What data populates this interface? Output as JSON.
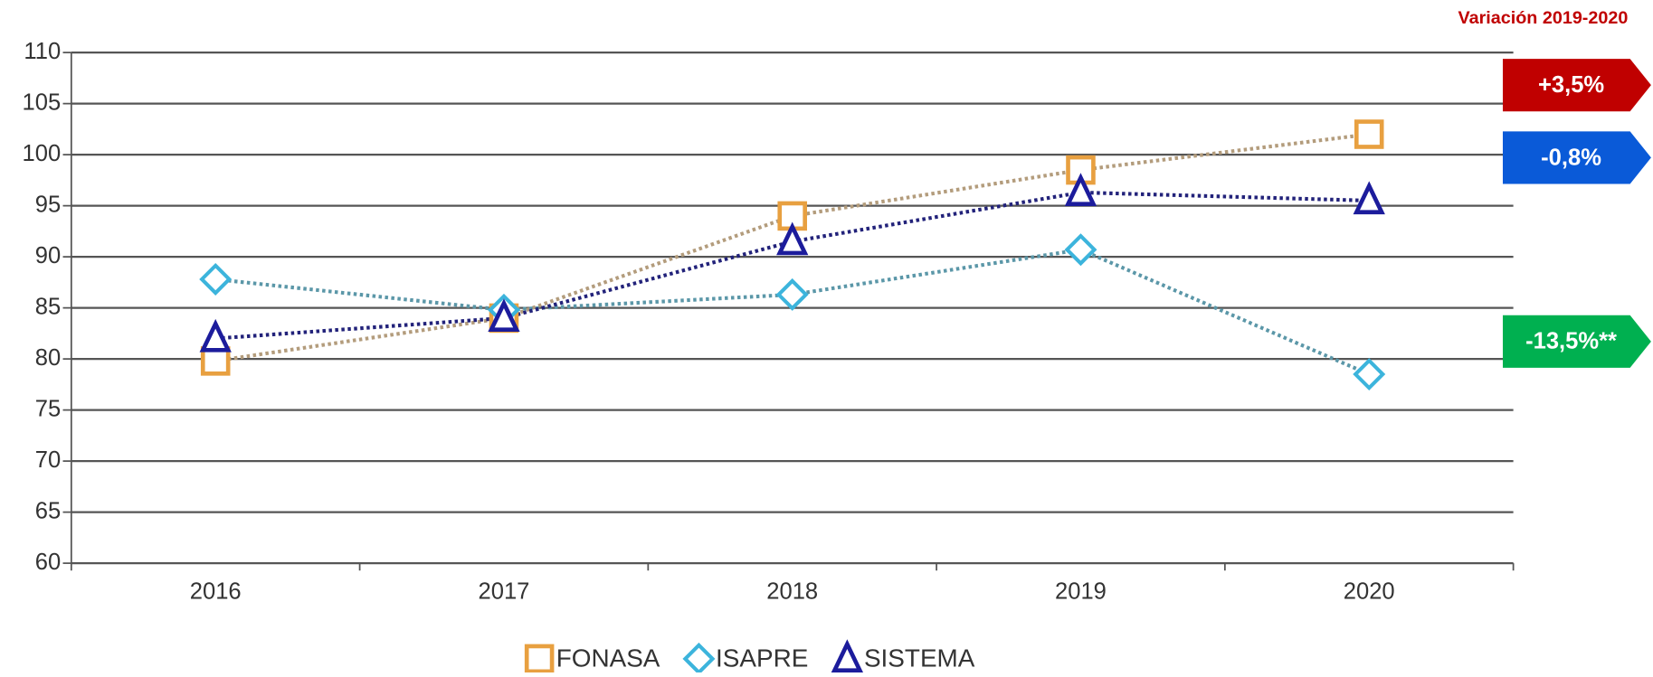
{
  "chart_data": {
    "type": "line",
    "categories": [
      "2016",
      "2017",
      "2018",
      "2019",
      "2020"
    ],
    "series": [
      {
        "name": "FONASA",
        "color": "#e8a040",
        "line_color": "#b39c7c",
        "marker": "square",
        "values": [
          79.8,
          84,
          94,
          98.5,
          102
        ]
      },
      {
        "name": "ISAPRE",
        "color": "#3cb4dc",
        "line_color": "#5b97a8",
        "marker": "diamond",
        "values": [
          87.8,
          84.8,
          86.3,
          90.7,
          78.5
        ]
      },
      {
        "name": "SISTEMA",
        "color": "#1c1c9c",
        "line_color": "#22227a",
        "marker": "triangle",
        "values": [
          82,
          84,
          91.5,
          96.3,
          95.5
        ]
      }
    ],
    "ylim": [
      60,
      110
    ],
    "yticks": [
      60,
      65,
      70,
      75,
      80,
      85,
      90,
      95,
      100,
      105,
      110
    ],
    "grid": true,
    "annotations": {
      "title": "Variación 2019-2020",
      "badges": [
        {
          "text": "+3,5%",
          "color": "#c00000"
        },
        {
          "text": "-0,8%",
          "color": "#0a5ad8"
        },
        {
          "text": "-13,5%**",
          "color": "#00b050"
        }
      ]
    }
  }
}
